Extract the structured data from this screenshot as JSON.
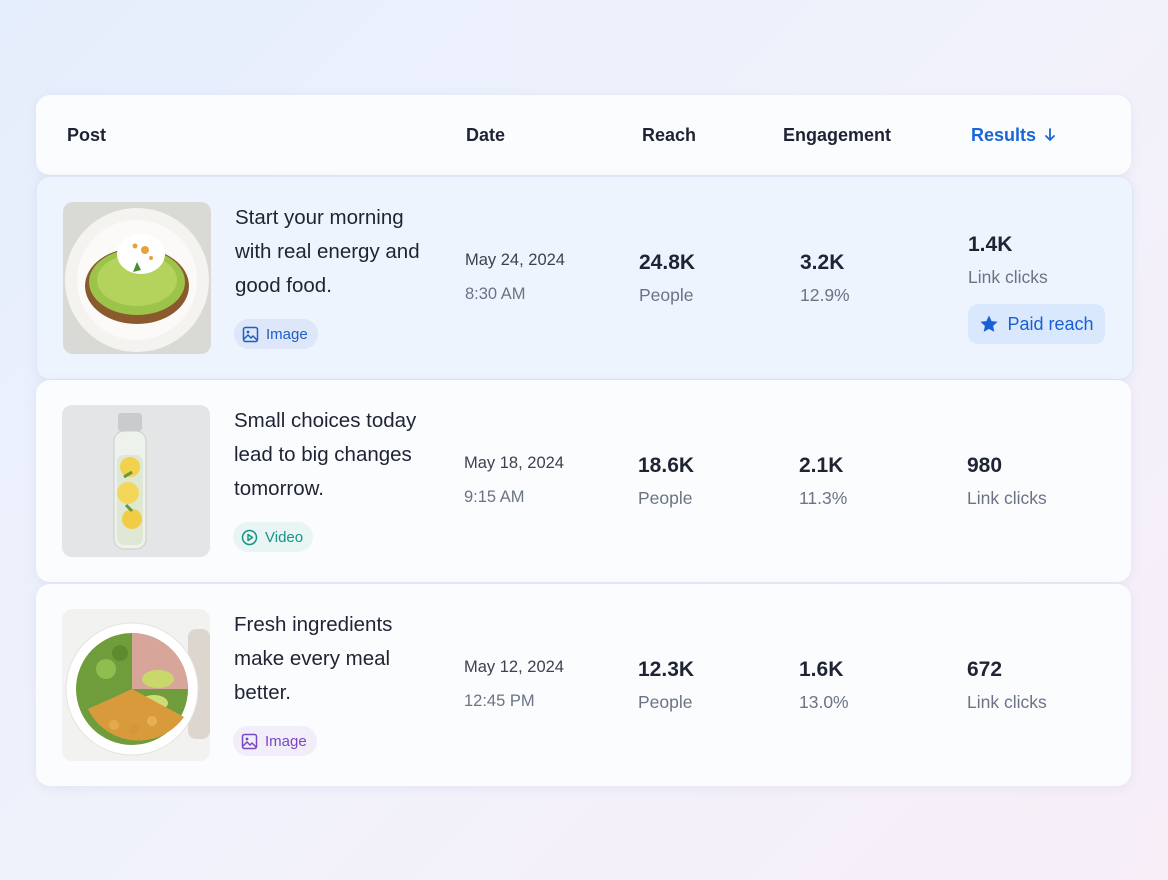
{
  "header": {
    "columns": [
      "Post",
      "Date",
      "Reach",
      "Engagement",
      "Results"
    ]
  },
  "rows": [
    {
      "text": "Start your morning with real energy and good food.",
      "tag": "Image",
      "date": "May 24, 2024",
      "time": "8:30 AM",
      "reach": "24.8K",
      "reach_label": "People",
      "engagement": "3.2K",
      "engagement_rate": "12.9%",
      "results": "1.4K",
      "results_label": "Link clicks",
      "badge": "Paid reach"
    },
    {
      "text": "Small choices today lead to big changes tomorrow.",
      "tag": "Video",
      "date": "May 18, 2024",
      "time": "9:15 AM",
      "reach": "18.6K",
      "reach_label": "People",
      "engagement": "2.1K",
      "engagement_rate": "11.3%",
      "results": "980",
      "results_label": "Link clicks"
    },
    {
      "text": "Fresh ingredients make every meal better.",
      "tag": "Image",
      "date": "May 12, 2024",
      "time": "12:45 PM",
      "reach": "12.3K",
      "reach_label": "People",
      "engagement": "1.6K",
      "engagement_rate": "13.0%",
      "results": "672",
      "results_label": "Link clicks"
    }
  ]
}
